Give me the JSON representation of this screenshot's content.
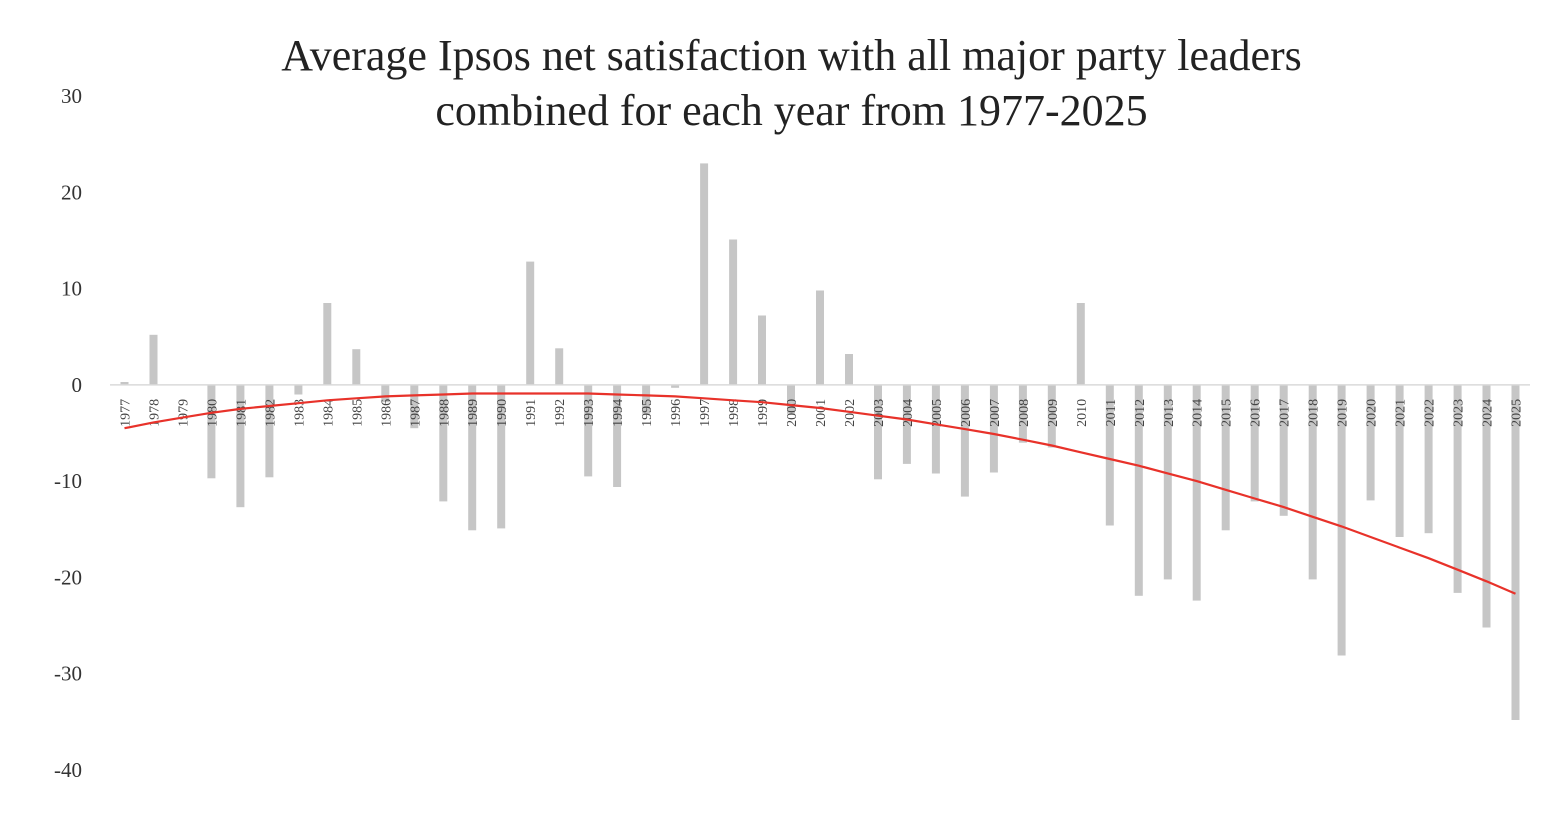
{
  "chart_data": {
    "type": "bar",
    "title": "Average Ipsos net satisfaction with all major party leaders combined for each year from 1977-2025",
    "title_lines": [
      "Average Ipsos net satisfaction with all major party leaders",
      "combined for each year from 1977-2025"
    ],
    "xlabel": "",
    "ylabel": "",
    "ylim": [
      -40,
      30
    ],
    "yticks": [
      30,
      20,
      10,
      0,
      -10,
      -20,
      -30,
      -40
    ],
    "grid": false,
    "legend": "none",
    "categories": [
      "1977",
      "1978",
      "1979",
      "1980",
      "1981",
      "1982",
      "1983",
      "1984",
      "1985",
      "1986",
      "1987",
      "1988",
      "1989",
      "1990",
      "1991",
      "1992",
      "1993",
      "1994",
      "1995",
      "1996",
      "1997",
      "1998",
      "1999",
      "2000",
      "2001",
      "2002",
      "2003",
      "2004",
      "2005",
      "2006",
      "2007",
      "2008",
      "2009",
      "2010",
      "2011",
      "2012",
      "2013",
      "2014",
      "2015",
      "2016",
      "2017",
      "2018",
      "2019",
      "2020",
      "2021",
      "2022",
      "2023",
      "2024",
      "2025"
    ],
    "series": [
      {
        "values": [
          0.3,
          5.2,
          0,
          -9.7,
          -12.7,
          -9.6,
          -1,
          8.5,
          3.7,
          -1.8,
          -4.5,
          -12.1,
          -15.1,
          -14.9,
          12.8,
          3.8,
          -9.5,
          -10.6,
          -3,
          -0.3,
          23,
          15.1,
          7.2,
          -3,
          9.8,
          3.2,
          -9.8,
          -8.2,
          -9.2,
          -11.6,
          -9.1,
          -6,
          -6.5,
          8.5,
          -14.6,
          -21.9,
          -20.2,
          -22.4,
          -15.1,
          -12.1,
          -13.6,
          -20.2,
          -28.1,
          -12,
          -15.8,
          -15.4,
          -21.6,
          -25.2,
          -34.8
        ],
        "color": "#c6c6c6"
      }
    ],
    "trendline": {
      "type": "polynomial",
      "color": "#e8322a",
      "values": [
        -4.5,
        -3.9,
        -3.4,
        -2.9,
        -2.5,
        -2.2,
        -1.9,
        -1.6,
        -1.4,
        -1.2,
        -1.1,
        -1.0,
        -0.9,
        -0.9,
        -0.9,
        -0.9,
        -0.9,
        -1.0,
        -1.1,
        -1.2,
        -1.4,
        -1.6,
        -1.8,
        -2.1,
        -2.4,
        -2.8,
        -3.2,
        -3.6,
        -4.1,
        -4.6,
        -5.1,
        -5.7,
        -6.3,
        -7.0,
        -7.7,
        -8.4,
        -9.2,
        -10.0,
        -10.9,
        -11.8,
        -12.7,
        -13.7,
        -14.7,
        -15.8,
        -16.9,
        -18.0,
        -19.2,
        -20.4,
        -21.7
      ]
    }
  }
}
